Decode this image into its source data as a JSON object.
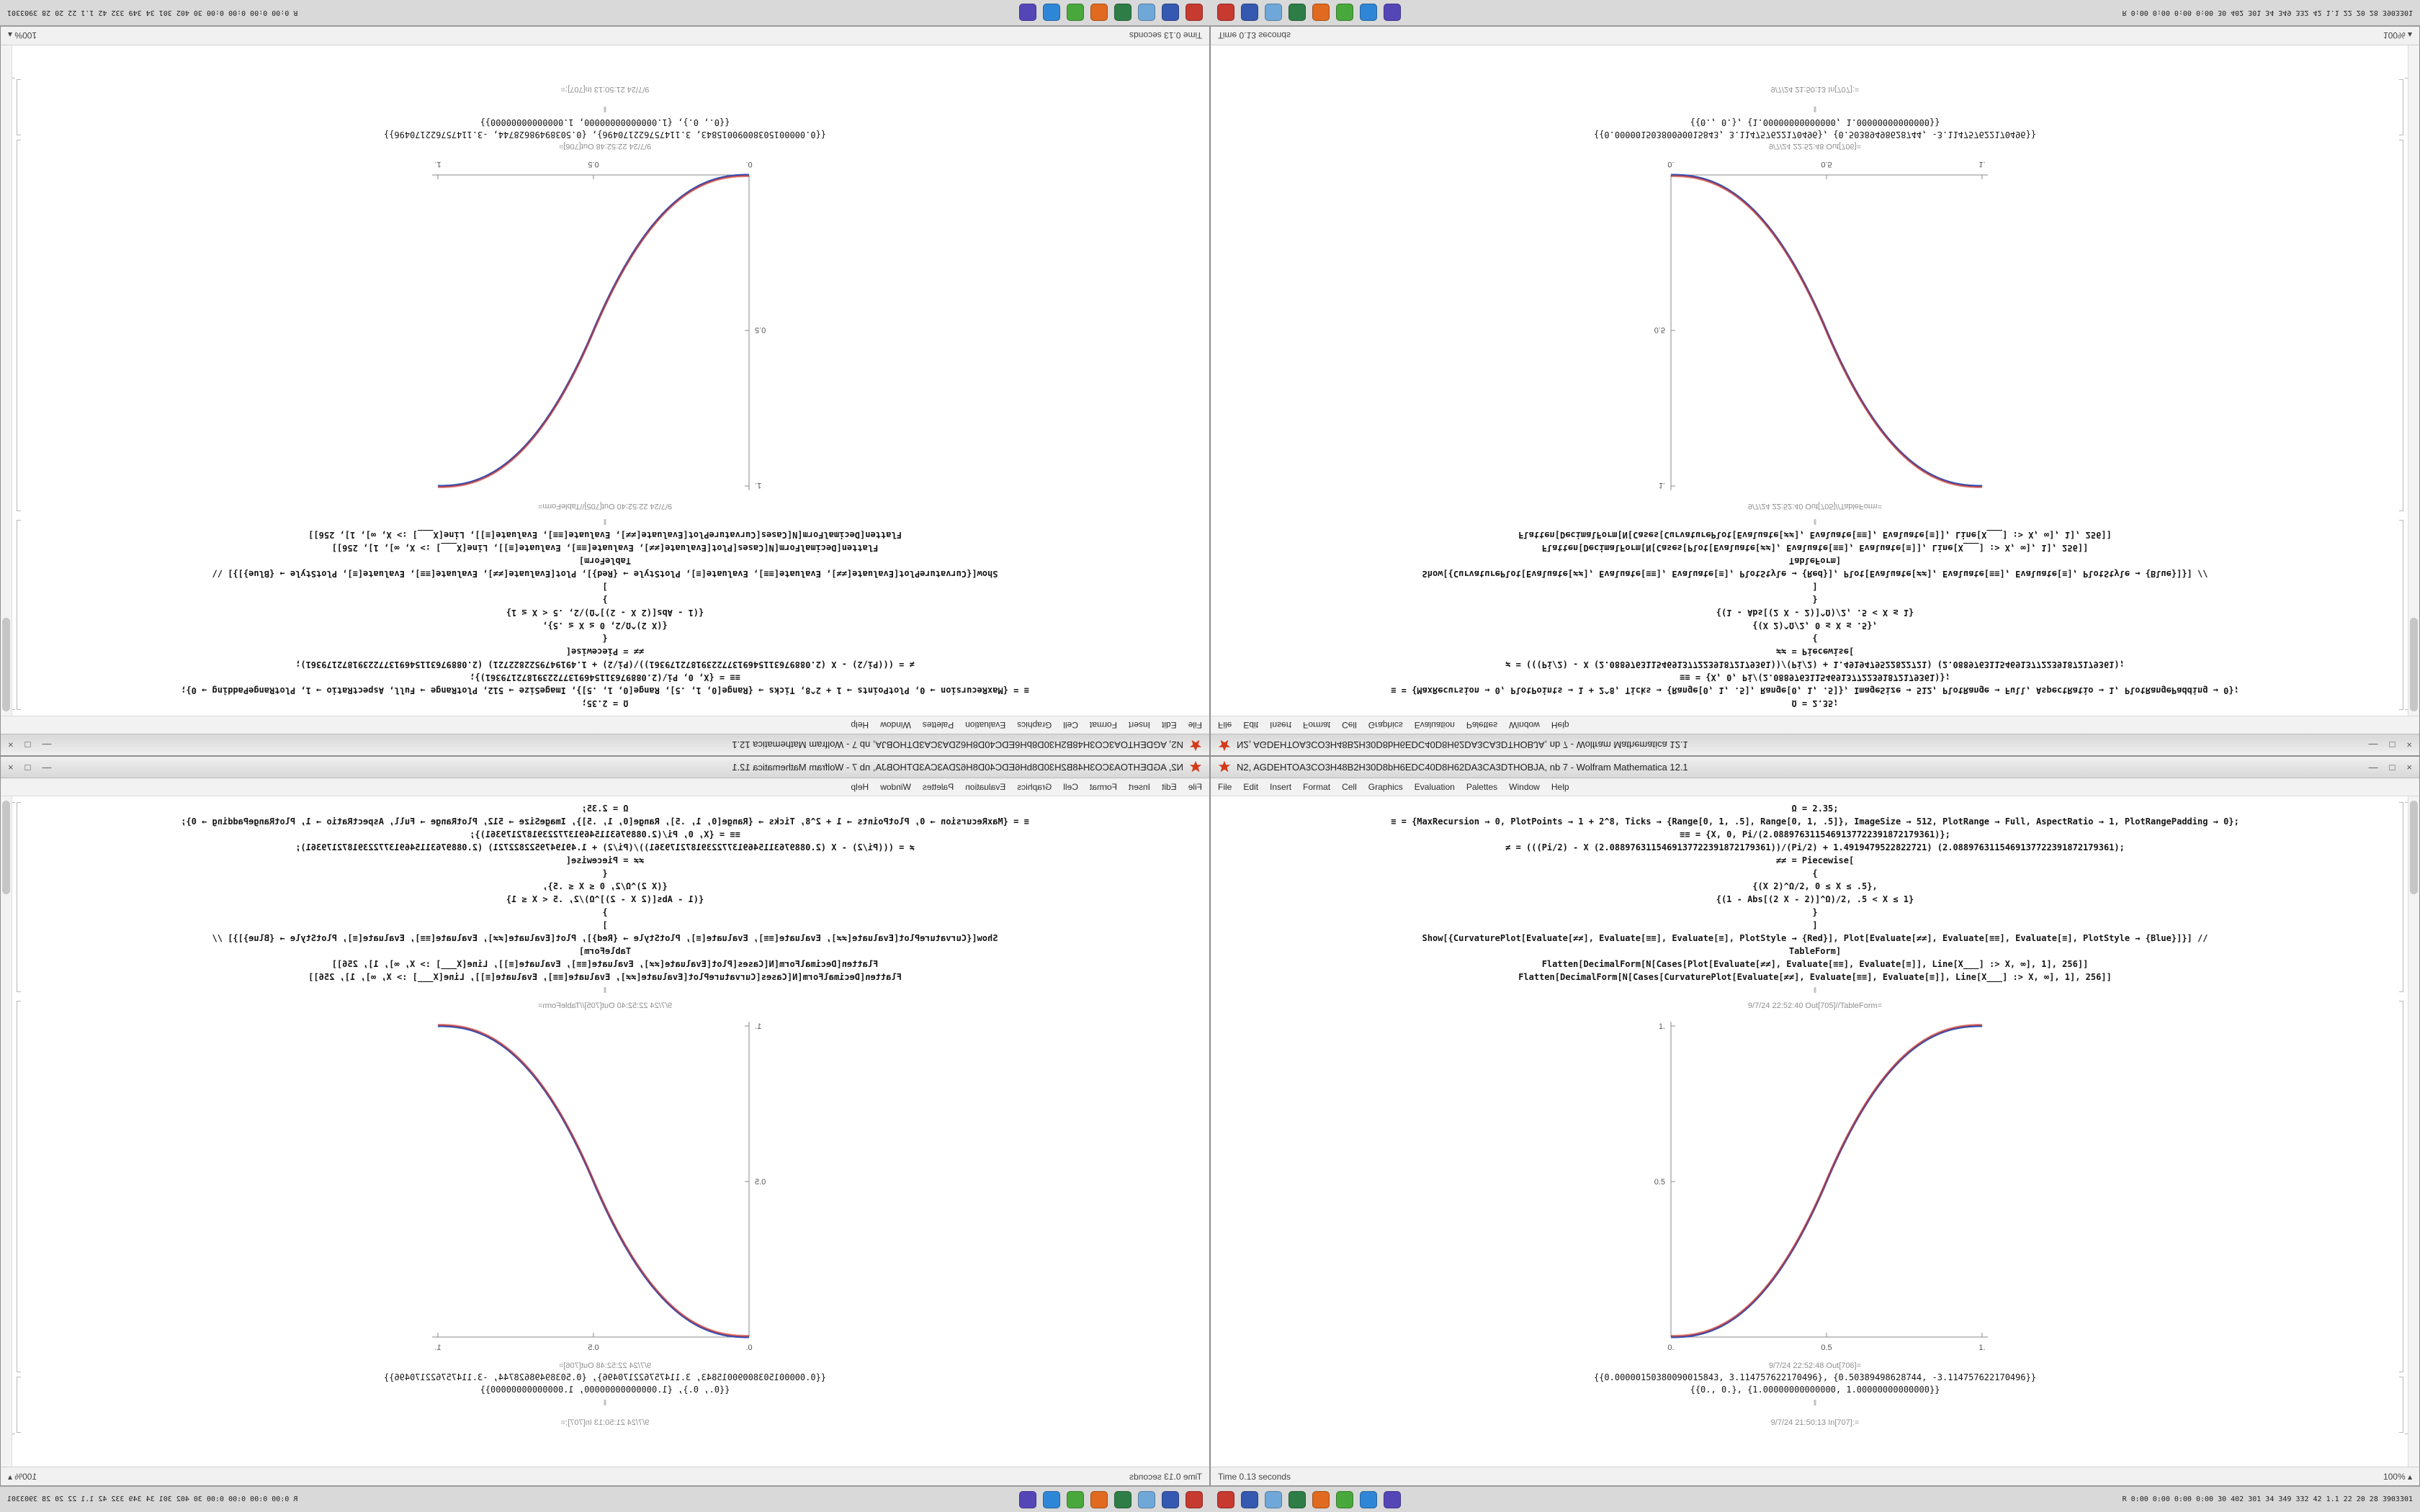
{
  "window": {
    "title": "N2, AGDEHTOA3CO3H48B2H30D8bH6EDC40D8H62DA3CA3DTHOBJA, nb 7 - Wolfram Mathematica 12.1",
    "menu_items": [
      "File",
      "Edit",
      "Insert",
      "Format",
      "Cell",
      "Graphics",
      "Evaluation",
      "Palettes",
      "Window",
      "Help"
    ],
    "buttons": {
      "minimize": "—",
      "maximize": "□",
      "close": "×"
    },
    "status_time": "Time 0.13 seconds",
    "status_zoom": "100% ▴"
  },
  "notebook": {
    "input_lines": [
      "Ω = 2.35;",
      "≡ = {MaxRecursion → 0, PlotPoints → 1 + 2^8, Ticks → {Range[0, 1, .5], Range[0, 1, .5]}, ImageSize → 512, PlotRange → Full, AspectRatio → 1, PlotRangePadding → 0};",
      "≡≡ = {X, 0, Pi/(2.0889763115469137722391872179361)};",
      "≠ = (((Pi/2) - X (2.0889763115469137722391872179361))/(Pi/2) + 1.4919479522822721) (2.0889763115469137722391872179361);",
      "≠≠ = Piecewise[",
      "{",
      "{(X 2)^Ω/2, 0 ≤ X ≤ .5},",
      "{(1 - Abs[(2 X - 2)]^Ω)/2, .5 < X ≤ 1}",
      "}",
      "]",
      "Show[{CurvaturePlot[Evaluate[≠≠], Evaluate[≡≡], Evaluate[≡], PlotStyle → {Red}], Plot[Evaluate[≠≠], Evaluate[≡≡], Evaluate[≡], PlotStyle → {Blue}]}] //",
      "TableForm]",
      "Flatten[DecimalForm[N[Cases[Plot[Evaluate[≠≠], Evaluate[≡≡], Evaluate[≡]], Line[X___] :> X, ∞], 1], 256]]",
      "Flatten[DecimalForm[N[Cases[CurvaturePlot[Evaluate[≠≠], Evaluate[≡≡], Evaluate[≡]], Line[X___] :> X, ∞], 1], 256]]"
    ],
    "separator": "‖",
    "out705_label": "9/7/24 22:52:40 Out[705]//TableForm=",
    "out706_label": "9/7/24 22:52:48 Out[706]=",
    "out706_value": "{{0.00000150380090015843, 3.114757622170496}, {0.50389498628744, -3.114757622170496}}",
    "out707_value": "{{0., 0.}, {1.00000000000000, 1.00000000000000}}",
    "next_in_label": "9/7/24 21:50:13 In[707]:="
  },
  "chart_data": {
    "type": "line",
    "title": "Out[705]//TableForm — piecewise smoothstep curve",
    "xlabel": "",
    "ylabel": "",
    "xlim": [
      0,
      1
    ],
    "ylim": [
      0,
      1
    ],
    "grid": false,
    "xticks": [
      "0.",
      "0.5",
      "1."
    ],
    "yticks": [
      "0.5",
      "1."
    ],
    "xtick_vals": [
      0,
      0.5,
      1
    ],
    "ytick_vals": [
      0.5,
      1
    ],
    "function": "Piecewise[{{(2 X)^Ω/2, 0 ≤ X ≤ .5}, {1 - (2 - 2 X)^Ω/2, .5 < X ≤ 1}}], Ω = 2.35",
    "omega": 2.35,
    "series": [
      {
        "name": "CurvaturePlot",
        "plot_style": "Red",
        "color": "#d8321f"
      },
      {
        "name": "Plot",
        "plot_style": "Blue",
        "color": "#2a52be"
      }
    ],
    "sample_points": {
      "x": [
        0,
        0.1,
        0.2,
        0.3,
        0.4,
        0.5,
        0.6,
        0.7,
        0.8,
        0.9,
        1.0
      ],
      "y": [
        0,
        0.0114,
        0.058,
        0.1506,
        0.296,
        0.5,
        0.704,
        0.8494,
        0.942,
        0.9886,
        1.0
      ]
    },
    "endpoints": [
      [
        0,
        0
      ],
      [
        1,
        1
      ]
    ]
  },
  "taskbar": {
    "icons": [
      {
        "name": "taskbar-app-icon-red",
        "color": "#c63a2f"
      },
      {
        "name": "taskbar-app-icon-blue",
        "color": "#3558b0"
      },
      {
        "name": "taskbar-app-icon-lightblue",
        "color": "#6fa8d8"
      },
      {
        "name": "taskbar-app-icon-darkgreen",
        "color": "#2e7d46"
      },
      {
        "name": "taskbar-app-icon-orange",
        "color": "#e06a1f"
      },
      {
        "name": "taskbar-app-icon-green",
        "color": "#49a83c"
      },
      {
        "name": "taskbar-app-icon-skyblue",
        "color": "#2f86d6"
      },
      {
        "name": "taskbar-app-icon-violet",
        "color": "#5546b8"
      }
    ],
    "tray_text": "R 0:00 0:00 0:00 0:00 30 402 301 34 349 332 42 1.1 22 20 28 3903301"
  }
}
